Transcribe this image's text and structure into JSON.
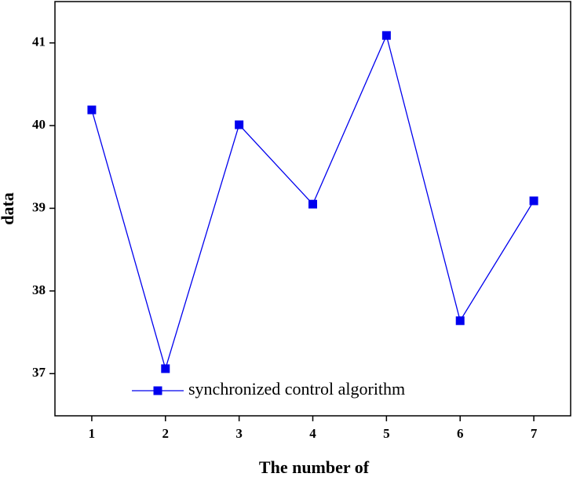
{
  "chart_data": {
    "type": "line",
    "xlabel": "The number of",
    "ylabel": "data",
    "x": [
      1,
      2,
      3,
      4,
      5,
      6,
      7
    ],
    "series": [
      {
        "name": "synchronized control algorithm",
        "color": "#0000ee",
        "values": [
          40.19,
          37.06,
          40.01,
          39.05,
          41.09,
          37.64,
          39.09
        ]
      }
    ],
    "xlim": [
      0.5,
      7.5
    ],
    "xticks": [
      1,
      2,
      3,
      4,
      5,
      6,
      7
    ],
    "ylim": [
      36.49,
      41.5
    ],
    "yticks": [
      37,
      38,
      39,
      40,
      41
    ],
    "grid": false,
    "legend": "bottom"
  }
}
